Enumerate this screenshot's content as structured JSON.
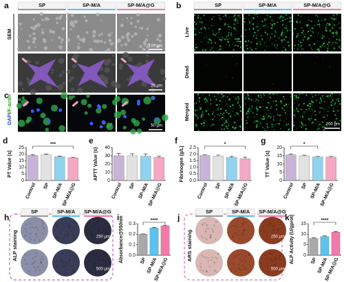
{
  "a": {
    "letter": "a",
    "groups": [
      "SP",
      "SP-M/A",
      "SP-M/A@G"
    ],
    "row_label": "SEM",
    "scale_bars": [
      "100 μm",
      "20 μm"
    ]
  },
  "b": {
    "letter": "b",
    "groups": [
      "SP",
      "SP-M/A",
      "SP-M/A@G"
    ],
    "rows": [
      "Live",
      "Dead",
      "Merged"
    ],
    "scale_bar": "200 μm"
  },
  "c": {
    "letter": "c",
    "row_label_parts": [
      "DAPI",
      "/F-actin"
    ],
    "scale_bar": "50 μm"
  },
  "h": {
    "letter": "h",
    "groups": [
      "SP",
      "SP-M/A",
      "SP-M/A@G"
    ],
    "row_label": "ALP staining",
    "scale_bars": [
      "250 μm",
      "500 μm"
    ]
  },
  "j": {
    "letter": "j",
    "groups": [
      "SP",
      "SP-M/A",
      "SP-M/A@G"
    ],
    "row_label": "ARS staining",
    "scale_bars": [
      "250 μm",
      "500 μm"
    ]
  },
  "chart_data": [
    {
      "type": "bar",
      "letter": "d",
      "ylabel": "PT Value (s)",
      "categories": [
        "Control",
        "SP",
        "SP-M/A",
        "SP-M/A@G"
      ],
      "values": [
        19,
        19.5,
        18,
        17.2
      ],
      "errors": [
        0.6,
        0.5,
        0.5,
        0.4
      ],
      "colors": [
        "#c9b3d9",
        "#e2e2e2",
        "#8fd3f0",
        "#f4a8c4"
      ],
      "ylim": [
        0,
        25
      ],
      "yticks": [
        0,
        5,
        10,
        15,
        20,
        25
      ],
      "significance": "***"
    },
    {
      "type": "bar",
      "letter": "e",
      "ylabel": "APTT Value (s)",
      "categories": [
        "Control",
        "SP",
        "SP-M/A",
        "SP-M/A@G"
      ],
      "values": [
        30,
        30,
        29.5,
        28
      ],
      "errors": [
        3,
        2.5,
        2.5,
        1.5
      ],
      "colors": [
        "#c9b3d9",
        "#e2e2e2",
        "#8fd3f0",
        "#f4a8c4"
      ],
      "ylim": [
        0,
        40
      ],
      "yticks": [
        0,
        10,
        20,
        30,
        40
      ]
    },
    {
      "type": "bar",
      "letter": "f",
      "ylabel": "Fibrinogen (g/L)",
      "categories": [
        "Control",
        "SP",
        "SP-M/A",
        "SP-M/A@G"
      ],
      "values": [
        1.9,
        1.85,
        1.75,
        1.65
      ],
      "errors": [
        0.05,
        0.08,
        0.08,
        0.12
      ],
      "colors": [
        "#c9b3d9",
        "#e2e2e2",
        "#8fd3f0",
        "#f4a8c4"
      ],
      "ylim": [
        0,
        2.5
      ],
      "yticks": [
        {
          "value": 0,
          "label": "0.0"
        },
        {
          "value": 0.5,
          "label": "0.5"
        },
        {
          "value": 1,
          "label": "1.0"
        },
        {
          "value": 1.5,
          "label": "1.5"
        },
        {
          "value": 2,
          "label": "2.0"
        },
        {
          "value": 2.5,
          "label": "2.5"
        }
      ],
      "significance": "*"
    },
    {
      "type": "bar",
      "letter": "g",
      "ylabel": "TT Value (s)",
      "categories": [
        "Control",
        "SP",
        "SP-M/A",
        "SP-M/A@G"
      ],
      "values": [
        15.5,
        15,
        14.3,
        14.2
      ],
      "errors": [
        0.6,
        0.4,
        0.3,
        0.4
      ],
      "colors": [
        "#c9b3d9",
        "#e2e2e2",
        "#8fd3f0",
        "#f4a8c4"
      ],
      "ylim": [
        0,
        20
      ],
      "yticks": [
        0,
        5,
        10,
        15,
        20
      ],
      "significance": "*"
    },
    {
      "type": "bar",
      "letter": "i",
      "ylabel": "Absorbance@550nm",
      "categories": [
        "SP",
        "SP-M/A",
        "SP-M/A@G"
      ],
      "values": [
        0.2,
        0.26,
        0.28
      ],
      "errors": [
        0.003,
        0.004,
        0.004
      ],
      "colors": [
        "#a9a9a9",
        "#5bc3ec",
        "#f27aa8"
      ],
      "ylim": [
        0,
        0.3
      ],
      "yticks": [
        {
          "value": 0,
          "label": "0.0"
        },
        {
          "value": 0.1,
          "label": "0.1"
        },
        {
          "value": 0.2,
          "label": "0.2"
        },
        {
          "value": 0.3,
          "label": "0.3"
        }
      ],
      "significance": "****"
    },
    {
      "type": "bar",
      "letter": "k",
      "ylabel": "ALP Activity (U/gprot)",
      "categories": [
        "SP",
        "SP-M/A",
        "SP-M/A@G"
      ],
      "values": [
        8,
        8.9,
        11
      ],
      "errors": [
        0.4,
        0.3,
        0.3
      ],
      "colors": [
        "#a9a9a9",
        "#5bc3ec",
        "#f27aa8"
      ],
      "ylim": [
        0,
        15
      ],
      "yticks": [
        0,
        5,
        10,
        15
      ],
      "significance": "****"
    }
  ]
}
